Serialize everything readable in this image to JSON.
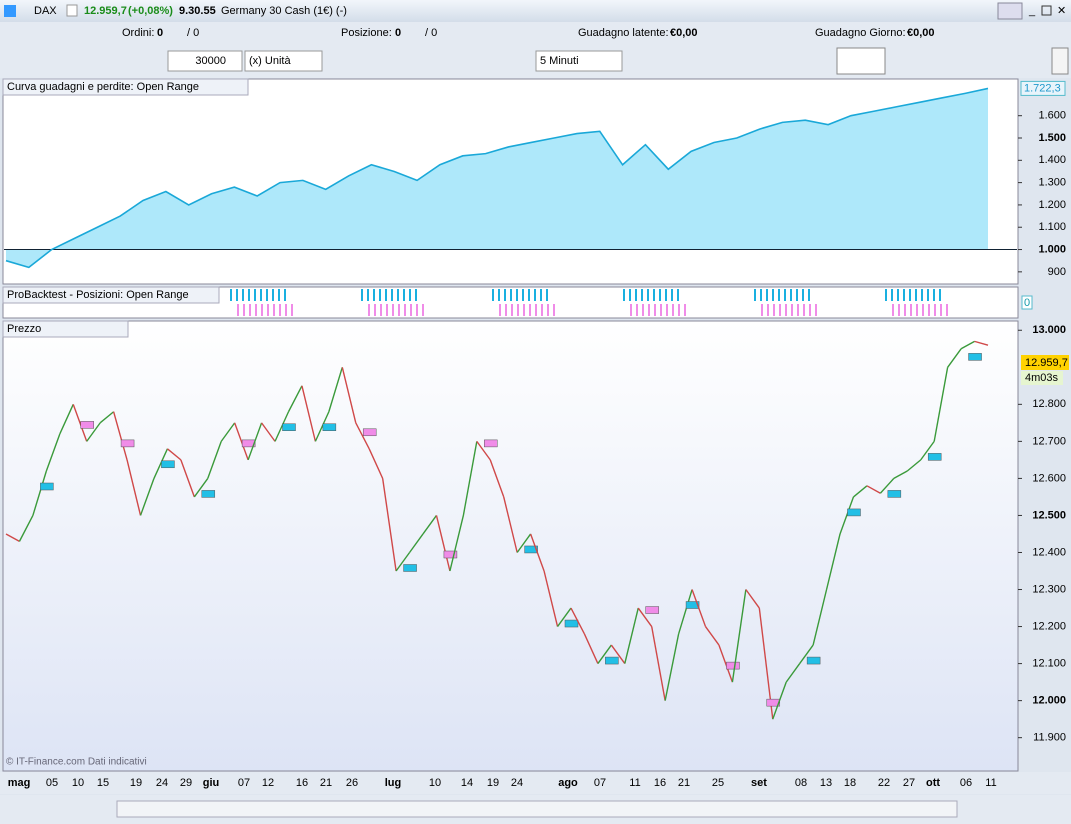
{
  "titlebar": {
    "symbol": "DAX",
    "price": "12.959,7",
    "change": "(+0,08%)",
    "time": "9.30.55",
    "name": "Germany 30 Cash (1€) (-)"
  },
  "status": {
    "orders_label": "Ordini:",
    "orders": "0",
    "orders_total": "/ 0",
    "positions_label": "Posizione:",
    "positions": "0",
    "positions_total": "/ 0",
    "latent_label": "Guadagno latente:",
    "latent": "€0,00",
    "day_label": "Guadagno Giorno:",
    "day": "€0,00"
  },
  "toolbar": {
    "quantity": "30000",
    "unit": "(x) Unità",
    "timeframe": "5 Minuti"
  },
  "equity_panel": {
    "title": "Curva guadagni e perdite: Open Range",
    "last_label": "1.722,3",
    "ylim": [
      850,
      1760
    ],
    "yticks": [
      900,
      {
        "value": 1000,
        "label": "1.000"
      },
      {
        "value": 1100,
        "label": "1.100"
      },
      {
        "value": 1200,
        "label": "1.200"
      },
      {
        "value": 1300,
        "label": "1.300"
      },
      {
        "value": 1400,
        "label": "1.400"
      },
      {
        "value": 1500,
        "label": "1.500"
      },
      {
        "value": 1600,
        "label": "1.600"
      }
    ],
    "values": [
      950,
      920,
      1000,
      1050,
      1100,
      1150,
      1220,
      1260,
      1200,
      1250,
      1280,
      1240,
      1300,
      1310,
      1270,
      1330,
      1380,
      1350,
      1310,
      1380,
      1420,
      1430,
      1460,
      1480,
      1500,
      1520,
      1530,
      1380,
      1470,
      1360,
      1440,
      1480,
      1500,
      1540,
      1570,
      1580,
      1560,
      1600,
      1620,
      1640,
      1660,
      1680,
      1700,
      1722.3
    ]
  },
  "positions_panel": {
    "title": "ProBacktest - Posizioni: Open Range",
    "value": "0"
  },
  "price_panel": {
    "title": "Prezzo",
    "last_label": "12.959,7",
    "countdown": "4m03s",
    "watermark": "© IT-Finance.com Dati indicativi",
    "ylim": [
      11810,
      13025
    ],
    "yticks": [
      {
        "value": 11900,
        "label": "11.900"
      },
      {
        "value": 12000,
        "label": "12.000"
      },
      {
        "value": 12100,
        "label": "12.100"
      },
      {
        "value": 12200,
        "label": "12.200"
      },
      {
        "value": 12300,
        "label": "12.300"
      },
      {
        "value": 12400,
        "label": "12.400"
      },
      {
        "value": 12500,
        "label": "12.500"
      },
      {
        "value": 12600,
        "label": "12.600"
      },
      {
        "value": 12700,
        "label": "12.700"
      },
      {
        "value": 12800,
        "label": "12.800"
      },
      {
        "value": 13000,
        "label": "13.000"
      }
    ],
    "values": [
      12450,
      12430,
      12500,
      12620,
      12720,
      12800,
      12700,
      12750,
      12780,
      12650,
      12500,
      12600,
      12680,
      12650,
      12550,
      12600,
      12700,
      12750,
      12650,
      12750,
      12700,
      12780,
      12850,
      12700,
      12780,
      12900,
      12750,
      12680,
      12600,
      12350,
      12400,
      12450,
      12500,
      12350,
      12500,
      12700,
      12650,
      12550,
      12400,
      12450,
      12350,
      12200,
      12250,
      12180,
      12100,
      12150,
      12100,
      12250,
      12200,
      12000,
      12180,
      12300,
      12200,
      12150,
      12050,
      12300,
      12250,
      11950,
      12050,
      12100,
      12150,
      12300,
      12450,
      12550,
      12580,
      12560,
      12600,
      12620,
      12650,
      12700,
      12900,
      12950,
      12970,
      12959.7
    ]
  },
  "x_axis": {
    "labels": [
      "mag",
      "05",
      "10",
      "15",
      "19",
      "24",
      "29",
      "giu",
      "07",
      "12",
      "16",
      "21",
      "26",
      "lug",
      "10",
      "14",
      "19",
      "24",
      "ago",
      "07",
      "11",
      "16",
      "21",
      "25",
      "set",
      "08",
      "13",
      "18",
      "22",
      "27",
      "ott",
      "06",
      "11"
    ]
  }
}
